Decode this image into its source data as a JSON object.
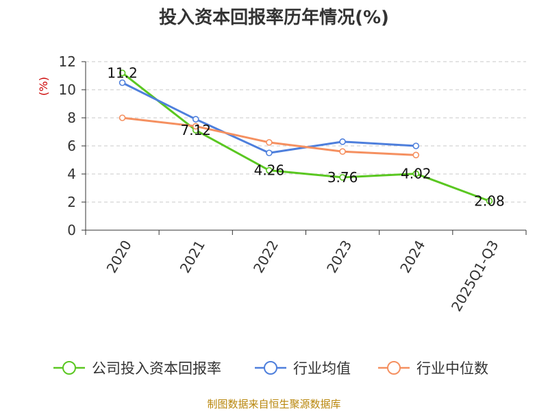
{
  "title": "投入资本回报率历年情况(%)",
  "source": "制图数据来自恒生聚源数据库",
  "colors": {
    "company": "#5ac721",
    "industry_avg": "#4e7fdc",
    "industry_median": "#f59060",
    "grid": "#c8c8c8",
    "axis": "#333333",
    "source_text": "#b8860b"
  },
  "chart_data": {
    "type": "line",
    "title": "投入资本回报率历年情况(%)",
    "xlabel": "",
    "ylabel": "(%)",
    "ylim": [
      0,
      12
    ],
    "yticks": [
      0,
      2,
      4,
      6,
      8,
      10,
      12
    ],
    "categories": [
      "2020",
      "2021",
      "2022",
      "2023",
      "2024",
      "2025Q1-Q3"
    ],
    "grid": true,
    "legend_position": "bottom",
    "series": [
      {
        "name": "公司投入资本回报率",
        "color": "#5ac721",
        "labeled": true,
        "values": [
          11.2,
          7.12,
          4.26,
          3.76,
          4.02,
          2.08
        ],
        "labels": [
          "11.2",
          "7.12",
          "4.26",
          "3.76",
          "4.02",
          "2.08"
        ]
      },
      {
        "name": "行业均值",
        "color": "#4e7fdc",
        "labeled": false,
        "values": [
          10.5,
          7.9,
          5.5,
          6.3,
          6.0,
          null
        ]
      },
      {
        "name": "行业中位数",
        "color": "#f59060",
        "labeled": false,
        "values": [
          8.0,
          7.4,
          6.25,
          5.6,
          5.35,
          null
        ]
      }
    ]
  }
}
